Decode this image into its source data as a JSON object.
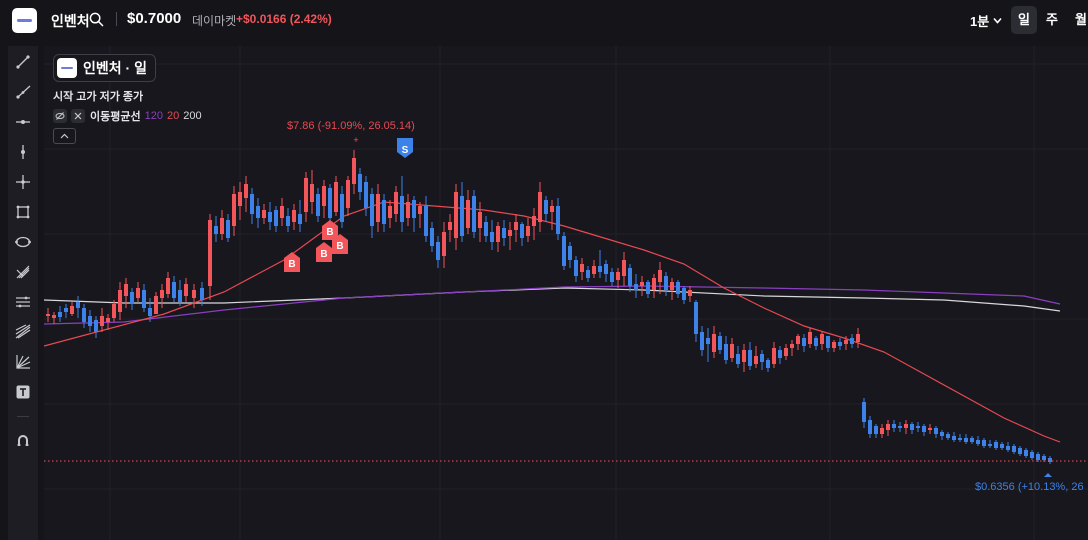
{
  "header": {
    "symbol": "인벤처",
    "price": "$0.7000",
    "market_label": "데이마켓",
    "change": "+$0.0166 (2.42%)",
    "interval": "1분",
    "periods": [
      "일",
      "주",
      "월"
    ],
    "active_period": "일"
  },
  "toolbar_icons": [
    "trend-line-icon",
    "ray-icon",
    "horizontal-line-icon",
    "vertical-line-icon",
    "crosshair-icon",
    "rectangle-icon",
    "ellipse-icon",
    "fibonacci-icon",
    "parallel-channel-icon",
    "pitchfork-icon",
    "gann-fan-icon",
    "text-icon",
    "magnet-icon"
  ],
  "legend": {
    "title": "인벤처 · 일",
    "ohlc_labels": "시작 고가 저가 종가",
    "ma_label": "이동평균선",
    "ma_periods": [
      "120",
      "20",
      "200"
    ]
  },
  "annotations": {
    "high": "$7.86 (-91.09%, 26.05.14)",
    "low": "$0.6356 (+10.13%, 26",
    "buy_marker": "B",
    "sell_marker": "S"
  },
  "colors": {
    "up": "#f2555a",
    "down": "#3d82e8",
    "ma20": "#e84a52",
    "ma120": "#8a3fc2",
    "ma200": "#d8d8dc",
    "current_price_line": "#f2555a"
  },
  "chart_data": {
    "type": "candlestick",
    "current_price": "$0.7000",
    "series": [
      {
        "name": "이동평균선 20"
      },
      {
        "name": "이동평균선 120"
      },
      {
        "name": "이동평균선 200"
      }
    ]
  }
}
